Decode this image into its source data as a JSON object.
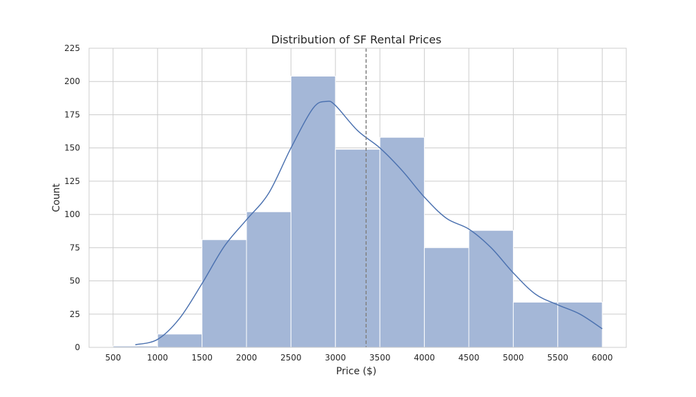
{
  "chart_data": {
    "type": "bar",
    "title": "Distribution of SF Rental Prices",
    "xlabel": "Price ($)",
    "ylabel": "Count",
    "xlim": [
      230,
      6270
    ],
    "ylim": [
      0,
      225
    ],
    "x_ticks": [
      500,
      1000,
      1500,
      2000,
      2500,
      3000,
      3500,
      4000,
      4500,
      5000,
      5500,
      6000
    ],
    "y_ticks": [
      0,
      25,
      50,
      75,
      100,
      125,
      150,
      175,
      200,
      225
    ],
    "grid": true,
    "bins": [
      {
        "start": 500,
        "end": 1000,
        "count": 1
      },
      {
        "start": 1000,
        "end": 1500,
        "count": 10
      },
      {
        "start": 1500,
        "end": 2000,
        "count": 81
      },
      {
        "start": 2000,
        "end": 2500,
        "count": 102
      },
      {
        "start": 2500,
        "end": 3000,
        "count": 204
      },
      {
        "start": 3000,
        "end": 3500,
        "count": 149
      },
      {
        "start": 3500,
        "end": 4000,
        "count": 158
      },
      {
        "start": 4000,
        "end": 4500,
        "count": 75
      },
      {
        "start": 4500,
        "end": 5000,
        "count": 88
      },
      {
        "start": 5000,
        "end": 5500,
        "count": 34
      },
      {
        "start": 5500,
        "end": 6000,
        "count": 34
      }
    ],
    "kde": {
      "x": [
        750,
        1000,
        1250,
        1500,
        1750,
        2000,
        2250,
        2500,
        2750,
        2900,
        3000,
        3250,
        3500,
        3750,
        4000,
        4250,
        4500,
        4750,
        5000,
        5250,
        5500,
        5750,
        6000
      ],
      "y": [
        2,
        6,
        22,
        48,
        76,
        96,
        116,
        150,
        180,
        185,
        182,
        163,
        150,
        133,
        113,
        97,
        89,
        75,
        56,
        40,
        32,
        25,
        14
      ]
    },
    "mean_line_x": 3345,
    "colors": {
      "bar_fill": "#a4b7d7",
      "kde_line": "#4c72b0",
      "mean_line": "#808080"
    }
  }
}
